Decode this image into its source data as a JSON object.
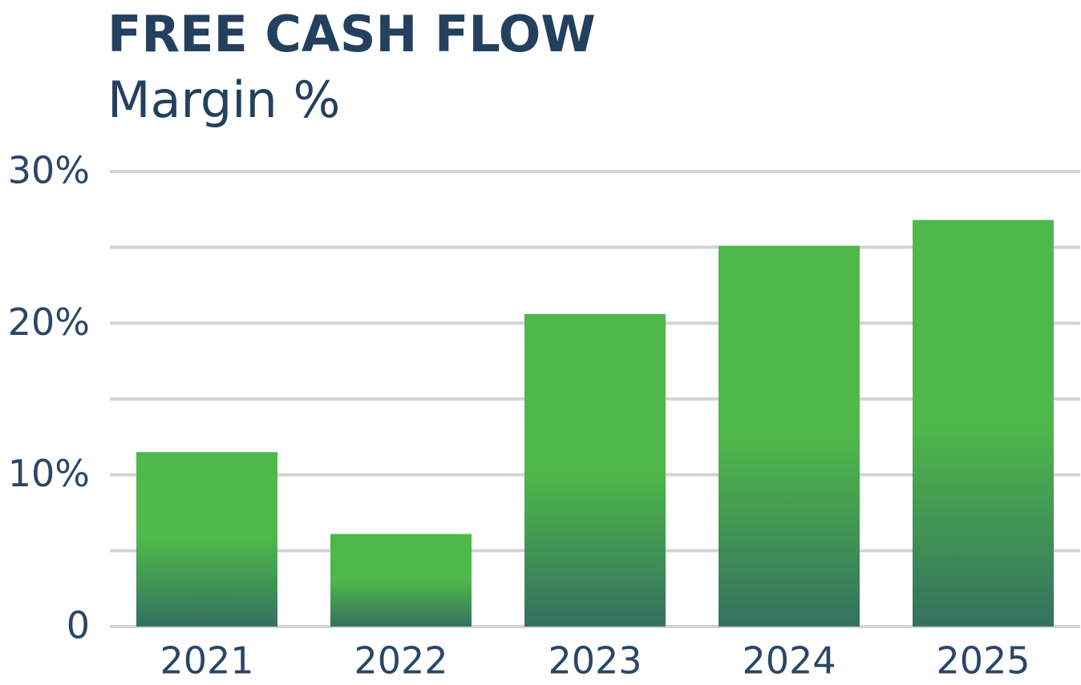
{
  "chart_data": {
    "type": "bar",
    "title": "FREE CASH FLOW",
    "subtitle": "Margin %",
    "categories": [
      "2021",
      "2022",
      "2023",
      "2024",
      "2025"
    ],
    "values": [
      11.5,
      6.1,
      20.6,
      25.1,
      26.8
    ],
    "color": "#4fb84a",
    "gradient_color": "#34715f",
    "ylim": [
      0,
      30
    ],
    "yticks": [
      0,
      {
        "value": 10,
        "label": "10%"
      },
      {
        "value": 20,
        "label": "20%"
      },
      {
        "value": 30,
        "label": "30%"
      }
    ],
    "minor_yticks": [
      5,
      15,
      25
    ],
    "grid": true
  }
}
